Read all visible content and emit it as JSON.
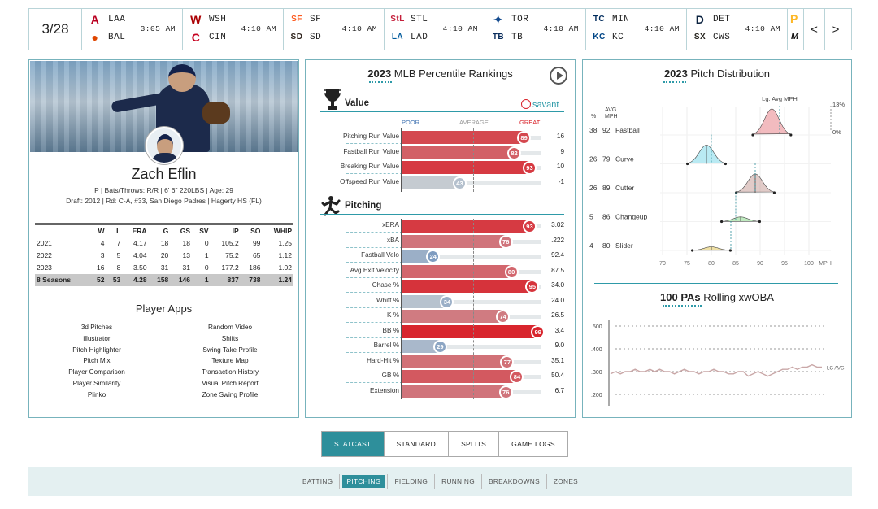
{
  "scoreboard": {
    "date": "3/28",
    "games": [
      {
        "away": "LAA",
        "home": "BAL",
        "time": "3:05 AM",
        "away_color": "#ba0021",
        "home_color": "#df4601",
        "away_glyph": "A",
        "home_glyph": "●"
      },
      {
        "away": "WSH",
        "home": "CIN",
        "time": "4:10 AM",
        "away_color": "#ab0003",
        "home_color": "#c6011f",
        "away_glyph": "W",
        "home_glyph": "C"
      },
      {
        "away": "SF",
        "home": "SD",
        "time": "4:10 AM",
        "away_color": "#fd5a1e",
        "home_color": "#2f241d",
        "away_glyph": "SF",
        "home_glyph": "SD"
      },
      {
        "away": "STL",
        "home": "LAD",
        "time": "4:10 AM",
        "away_color": "#c41e3a",
        "home_color": "#005a9c",
        "away_glyph": "StL",
        "home_glyph": "LA"
      },
      {
        "away": "TOR",
        "home": "TB",
        "time": "4:10 AM",
        "away_color": "#134a8e",
        "home_color": "#092c5c",
        "away_glyph": "✦",
        "home_glyph": "TB"
      },
      {
        "away": "MIN",
        "home": "KC",
        "time": "4:10 AM",
        "away_color": "#002b5c",
        "home_color": "#004687",
        "away_glyph": "TC",
        "home_glyph": "KC"
      },
      {
        "away": "DET",
        "home": "CWS",
        "time": "4:10 AM",
        "away_color": "#0c2340",
        "home_color": "#27251f",
        "away_glyph": "D",
        "home_glyph": "SX"
      }
    ],
    "extra_logo_top": "P",
    "extra_logo_bottom": "M",
    "prev": "<",
    "next": ">"
  },
  "player": {
    "name": "Zach Eflin",
    "line1": "P | Bats/Throws: R/R | 6' 6\" 220LBS | Age: 29",
    "line2": "Draft: 2012 | Rd: C-A, #33, San Diego Padres | Hagerty HS (FL)",
    "stats_headers": [
      "",
      "W",
      "L",
      "ERA",
      "G",
      "GS",
      "SV",
      "IP",
      "SO",
      "WHIP"
    ],
    "stats_rows": [
      [
        "2021",
        "4",
        "7",
        "4.17",
        "18",
        "18",
        "0",
        "105.2",
        "99",
        "1.25"
      ],
      [
        "2022",
        "3",
        "5",
        "4.04",
        "20",
        "13",
        "1",
        "75.2",
        "65",
        "1.12"
      ],
      [
        "2023",
        "16",
        "8",
        "3.50",
        "31",
        "31",
        "0",
        "177.2",
        "186",
        "1.02"
      ]
    ],
    "stats_total": [
      "8 Seasons",
      "52",
      "53",
      "4.28",
      "158",
      "146",
      "1",
      "837",
      "738",
      "1.24"
    ],
    "apps_title": "Player Apps",
    "apps_left": [
      "3d Pitches",
      "illustrator",
      "Pitch Highlighter",
      "Pitch Mix",
      "Player Comparison",
      "Player Similarity",
      "Plinko"
    ],
    "apps_right": [
      "Random Video",
      "Shifts",
      "Swing Take Profile",
      "Texture Map",
      "Transaction History",
      "Visual Pitch Report",
      "Zone Swing Profile"
    ]
  },
  "percentile": {
    "title_year": "2023",
    "title_rest": " MLB Percentile Rankings",
    "value_label": "Value",
    "savant_label": "savant",
    "poor": "POOR",
    "average": "AVERAGE",
    "great": "GREAT",
    "value_rows": [
      {
        "label": "Pitching Run Value",
        "pct": 89,
        "value": "16"
      },
      {
        "label": "Fastball Run Value",
        "pct": 82,
        "value": "9"
      },
      {
        "label": "Breaking Run Value",
        "pct": 93,
        "value": "10"
      },
      {
        "label": "Offspeed Run Value",
        "pct": 43,
        "value": "-1"
      }
    ],
    "pitching_label": "Pitching",
    "pitching_rows": [
      {
        "label": "xERA",
        "pct": 93,
        "value": "3.02"
      },
      {
        "label": "xBA",
        "pct": 76,
        "value": ".222"
      },
      {
        "label": "Fastball Velo",
        "pct": 24,
        "value": "92.4"
      },
      {
        "label": "Avg Exit Velocity",
        "pct": 80,
        "value": "87.5"
      },
      {
        "label": "Chase %",
        "pct": 95,
        "value": "34.0"
      },
      {
        "label": "Whiff %",
        "pct": 34,
        "value": "24.0"
      },
      {
        "label": "K %",
        "pct": 74,
        "value": "26.5"
      },
      {
        "label": "BB %",
        "pct": 99,
        "value": "3.4"
      },
      {
        "label": "Barrel %",
        "pct": 29,
        "value": "9.0"
      },
      {
        "label": "Hard-Hit %",
        "pct": 77,
        "value": "35.1"
      },
      {
        "label": "GB %",
        "pct": 84,
        "value": "50.4"
      },
      {
        "label": "Extension",
        "pct": 76,
        "value": "6.7"
      }
    ]
  },
  "distribution": {
    "title_year": "2023",
    "title_rest": " Pitch Distribution",
    "lg_avg_label": "Lg. Avg MPH",
    "col_pct": "%",
    "col_avg": "AVG",
    "col_mph": "MPH",
    "scale_top": "13%",
    "scale_bottom": "0%",
    "pitches": [
      {
        "pct": "38",
        "mph": "92",
        "name": "Fastball",
        "avg": 92.4,
        "lg": 94.0,
        "color": "#e8848b",
        "peak": 1.0
      },
      {
        "pct": "26",
        "mph": "79",
        "name": "Curve",
        "avg": 79.0,
        "lg": 80.0,
        "color": "#7fd8ea",
        "peak": 0.72
      },
      {
        "pct": "26",
        "mph": "89",
        "name": "Cutter",
        "avg": 89.0,
        "lg": 89.0,
        "color": "#c9a19a",
        "peak": 0.72
      },
      {
        "pct": "5",
        "mph": "86",
        "name": "Changeup",
        "avg": 86.0,
        "lg": 85.0,
        "color": "#8ad88a",
        "peak": 0.18
      },
      {
        "pct": "4",
        "mph": "80",
        "name": "Slider",
        "avg": 80.0,
        "lg": 84.0,
        "color": "#e0c45a",
        "peak": 0.14
      }
    ],
    "x_ticks": [
      "70",
      "75",
      "80",
      "85",
      "90",
      "95",
      "100"
    ],
    "x_unit": "MPH",
    "rolling_bold": "100 PAs",
    "rolling_rest": " Rolling xwOBA",
    "rolling_ticks": [
      ".500",
      ".400",
      ".300",
      ".200"
    ],
    "rolling_lg_label": "LG AVG",
    "rolling_lg_value": 0.316,
    "rolling_series": [
      0.29,
      0.3,
      0.29,
      0.3,
      0.3,
      0.31,
      0.3,
      0.3,
      0.31,
      0.3,
      0.31,
      0.3,
      0.3,
      0.29,
      0.3,
      0.31,
      0.3,
      0.3,
      0.29,
      0.3,
      0.3,
      0.31,
      0.3,
      0.3,
      0.29,
      0.29,
      0.3,
      0.3,
      0.28,
      0.29,
      0.3,
      0.29,
      0.28,
      0.29,
      0.3,
      0.31,
      0.31,
      0.32,
      0.31,
      0.32,
      0.32,
      0.33,
      0.32,
      0.32
    ]
  },
  "tabs": [
    "STATCAST",
    "STANDARD",
    "SPLITS",
    "GAME LOGS"
  ],
  "subnav": [
    "BATTING",
    "PITCHING",
    "FIELDING",
    "RUNNING",
    "BREAKDOWNS",
    "ZONES"
  ],
  "colors": {
    "great": "#d8222a",
    "poor": "#3b6fb0",
    "teal": "#2e8f9b"
  }
}
